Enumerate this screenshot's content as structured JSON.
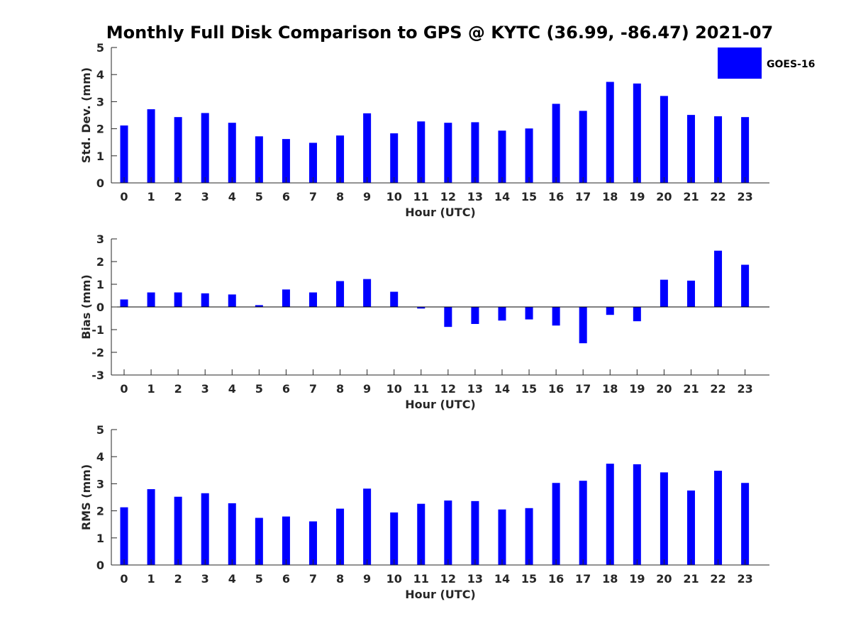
{
  "title": "Monthly Full Disk Comparison to GPS @ KYTC (36.99, -86.47) 2021-07",
  "legend": {
    "label": "GOES-16"
  },
  "colors": {
    "bar": "#0000ff",
    "axis": "#262626"
  },
  "chart_data": [
    {
      "type": "bar",
      "xlabel": "Hour (UTC)",
      "ylabel": "Std. Dev. (mm)",
      "ylim": [
        0,
        5
      ],
      "yticks": [
        0,
        1,
        2,
        3,
        4,
        5
      ],
      "categories": [
        "0",
        "1",
        "2",
        "3",
        "4",
        "5",
        "6",
        "7",
        "8",
        "9",
        "10",
        "11",
        "12",
        "13",
        "14",
        "15",
        "16",
        "17",
        "18",
        "19",
        "20",
        "21",
        "22",
        "23"
      ],
      "series": [
        {
          "name": "GOES-16",
          "values": [
            2.12,
            2.72,
            2.43,
            2.58,
            2.22,
            1.72,
            1.62,
            1.48,
            1.75,
            2.57,
            1.83,
            2.27,
            2.22,
            2.24,
            1.93,
            2.01,
            2.92,
            2.66,
            3.73,
            3.67,
            3.21,
            2.51,
            2.46,
            2.43
          ]
        }
      ]
    },
    {
      "type": "bar",
      "xlabel": "Hour (UTC)",
      "ylabel": "Bias (mm)",
      "ylim": [
        -3,
        3
      ],
      "yticks": [
        -3,
        -2,
        -1,
        0,
        1,
        2,
        3
      ],
      "categories": [
        "0",
        "1",
        "2",
        "3",
        "4",
        "5",
        "6",
        "7",
        "8",
        "9",
        "10",
        "11",
        "12",
        "13",
        "14",
        "15",
        "16",
        "17",
        "18",
        "19",
        "20",
        "21",
        "22",
        "23"
      ],
      "series": [
        {
          "name": "GOES-16",
          "values": [
            0.33,
            0.64,
            0.64,
            0.6,
            0.55,
            0.08,
            0.77,
            0.64,
            1.14,
            1.23,
            0.67,
            -0.07,
            -0.88,
            -0.75,
            -0.6,
            -0.55,
            -0.82,
            -1.6,
            -0.35,
            -0.63,
            1.2,
            1.16,
            2.48,
            1.86
          ]
        }
      ]
    },
    {
      "type": "bar",
      "xlabel": "Hour (UTC)",
      "ylabel": "RMS (mm)",
      "ylim": [
        0,
        5
      ],
      "yticks": [
        0,
        1,
        2,
        3,
        4,
        5
      ],
      "categories": [
        "0",
        "1",
        "2",
        "3",
        "4",
        "5",
        "6",
        "7",
        "8",
        "9",
        "10",
        "11",
        "12",
        "13",
        "14",
        "15",
        "16",
        "17",
        "18",
        "19",
        "20",
        "21",
        "22",
        "23"
      ],
      "series": [
        {
          "name": "GOES-16",
          "values": [
            2.13,
            2.8,
            2.52,
            2.65,
            2.28,
            1.74,
            1.79,
            1.61,
            2.08,
            2.82,
            1.94,
            2.26,
            2.38,
            2.36,
            2.05,
            2.1,
            3.03,
            3.11,
            3.74,
            3.72,
            3.42,
            2.75,
            3.48,
            3.03
          ]
        }
      ]
    }
  ]
}
